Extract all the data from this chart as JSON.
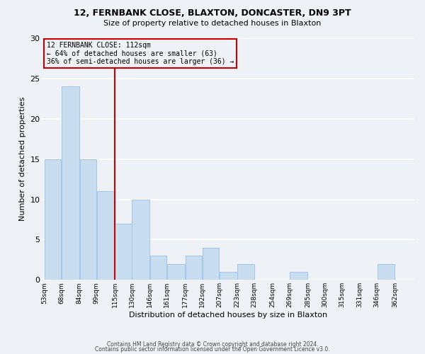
{
  "title1": "12, FERNBANK CLOSE, BLAXTON, DONCASTER, DN9 3PT",
  "title2": "Size of property relative to detached houses in Blaxton",
  "xlabel": "Distribution of detached houses by size in Blaxton",
  "ylabel": "Number of detached properties",
  "bin_labels": [
    "53sqm",
    "68sqm",
    "84sqm",
    "99sqm",
    "115sqm",
    "130sqm",
    "146sqm",
    "161sqm",
    "177sqm",
    "192sqm",
    "207sqm",
    "223sqm",
    "238sqm",
    "254sqm",
    "269sqm",
    "285sqm",
    "300sqm",
    "315sqm",
    "331sqm",
    "346sqm",
    "362sqm"
  ],
  "bin_edges": [
    53,
    68,
    84,
    99,
    115,
    130,
    146,
    161,
    177,
    192,
    207,
    223,
    238,
    254,
    269,
    285,
    300,
    315,
    331,
    346,
    362,
    377
  ],
  "counts": [
    15,
    24,
    15,
    11,
    7,
    10,
    3,
    2,
    3,
    4,
    1,
    2,
    0,
    0,
    1,
    0,
    0,
    0,
    0,
    2,
    0
  ],
  "bar_color": "#c8ddf0",
  "bar_edgecolor": "#a8c8e8",
  "property_line_x": 115,
  "property_line_color": "#cc0000",
  "annotation_line1": "12 FERNBANK CLOSE: 112sqm",
  "annotation_line2": "← 64% of detached houses are smaller (63)",
  "annotation_line3": "36% of semi-detached houses are larger (36) →",
  "annotation_box_edgecolor": "#cc0000",
  "ylim": [
    0,
    30
  ],
  "yticks": [
    0,
    5,
    10,
    15,
    20,
    25,
    30
  ],
  "footer1": "Contains HM Land Registry data © Crown copyright and database right 2024.",
  "footer2": "Contains public sector information licensed under the Open Government Licence v3.0.",
  "background_color": "#eef2f7",
  "grid_color": "#ffffff"
}
